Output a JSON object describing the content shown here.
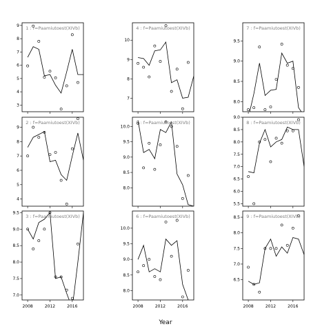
{
  "chart_data": {
    "type": "line",
    "xlabel": "Year",
    "x_ticks": [
      2008,
      2012,
      2016
    ],
    "x_range": [
      2007,
      2018
    ],
    "panels": [
      {
        "title": "1 : f=Paamiutoest(XIVb)",
        "ylim": [
          2.5,
          9.2
        ],
        "y_ticks": [
          3,
          4,
          5,
          6,
          7,
          8,
          9
        ],
        "y_tick_labels": [
          "3",
          "4",
          "5",
          "6",
          "7",
          "8",
          "9"
        ],
        "line": {
          "x": [
            2008,
            2009,
            2010,
            2011,
            2012,
            2013,
            2014,
            2015,
            2016,
            2017,
            2018
          ],
          "y": [
            6.6,
            7.4,
            7.2,
            5.2,
            5.3,
            4.5,
            3.9,
            5.5,
            7.2,
            5.3,
            5.3
          ]
        },
        "points": {
          "x": [
            2008,
            2009,
            2010,
            2011,
            2012,
            2013,
            2014,
            2015,
            2016,
            2017
          ],
          "y": [
            5.95,
            8.95,
            7.8,
            5.1,
            5.55,
            5.05,
            2.7,
            4.45,
            8.3,
            4.7
          ]
        }
      },
      {
        "title": "4 : f=Paamiutoest(XIVb)",
        "ylim": [
          6.3,
          10.9
        ],
        "y_ticks": [
          7,
          8,
          9,
          10
        ],
        "y_tick_labels": [
          "7",
          "8",
          "9",
          "10"
        ],
        "line": {
          "x": [
            2008,
            2009,
            2010,
            2011,
            2012,
            2013,
            2014,
            2015,
            2016,
            2017,
            2018
          ],
          "y": [
            9.1,
            9.05,
            8.7,
            9.45,
            9.5,
            9.9,
            7.8,
            7.95,
            7.0,
            7.05,
            8.15
          ]
        },
        "points": {
          "x": [
            2008,
            2009,
            2010,
            2011,
            2012,
            2013,
            2014,
            2015,
            2016,
            2017
          ],
          "y": [
            8.8,
            8.6,
            8.1,
            9.7,
            8.9,
            10.75,
            7.35,
            8.5,
            6.45,
            8.85
          ]
        }
      },
      {
        "title": "7 : f=Paamiutoest(XIVb)",
        "ylim": [
          7.75,
          9.95
        ],
        "y_ticks": [
          8.0,
          8.5,
          9.0,
          9.5
        ],
        "y_tick_labels": [
          "8.0",
          "8.5",
          "9.0",
          "9.5"
        ],
        "line": {
          "x": [
            2008,
            2009,
            2010,
            2011,
            2012,
            2013,
            2014,
            2015,
            2016,
            2017,
            2018
          ],
          "y": [
            7.6,
            8.2,
            8.95,
            8.15,
            8.28,
            8.3,
            9.2,
            8.95,
            9.0,
            7.85,
            7.65
          ]
        },
        "points": {
          "x": [
            2008,
            2009,
            2010,
            2011,
            2012,
            2013,
            2014,
            2015,
            2016,
            2017
          ],
          "y": [
            7.8,
            7.85,
            9.35,
            7.8,
            7.87,
            8.55,
            9.42,
            8.9,
            8.82,
            8.35
          ]
        }
      },
      {
        "title": "2 : f=Paamiutoest(XIVb)",
        "ylim": [
          3.5,
          9.7
        ],
        "y_ticks": [
          4,
          5,
          6,
          7,
          8,
          9
        ],
        "y_tick_labels": [
          "4",
          "5",
          "6",
          "7",
          "8",
          "9"
        ],
        "line": {
          "x": [
            2008,
            2009,
            2010,
            2011,
            2012,
            2013,
            2014,
            2015,
            2016,
            2017,
            2018
          ],
          "y": [
            7.6,
            8.3,
            8.5,
            8.7,
            6.6,
            6.7,
            5.7,
            5.3,
            7.0,
            8.6,
            6.7
          ]
        },
        "points": {
          "x": [
            2008,
            2009,
            2010,
            2011,
            2012,
            2013,
            2014,
            2015,
            2016,
            2017
          ],
          "y": [
            7.0,
            9.0,
            8.3,
            8.65,
            7.1,
            7.25,
            5.3,
            3.65,
            7.5,
            9.6
          ]
        }
      },
      {
        "title": "5 : f=Paamiutoest(XIVb)",
        "ylim": [
          7.4,
          10.3
        ],
        "y_ticks": [
          8.0,
          8.5,
          9.0,
          9.5,
          10.0
        ],
        "y_tick_labels": [
          "8.0",
          "8.5",
          "9.0",
          "9.5",
          "10.0"
        ],
        "line": {
          "x": [
            2008,
            2009,
            2010,
            2011,
            2012,
            2013,
            2014,
            2015,
            2016,
            2017,
            2018
          ],
          "y": [
            10.2,
            9.15,
            9.25,
            8.95,
            9.9,
            9.8,
            10.15,
            8.45,
            8.1,
            7.45,
            7.4
          ]
        },
        "points": {
          "x": [
            2008,
            2009,
            2010,
            2011,
            2012,
            2013,
            2014,
            2015,
            2016,
            2017
          ],
          "y": [
            10.1,
            8.65,
            9.45,
            8.6,
            9.4,
            10.15,
            10.0,
            9.35,
            7.65,
            8.4
          ]
        }
      },
      {
        "title": "8 : f=Paamiutoest(XIVb)",
        "ylim": [
          5.4,
          9.0
        ],
        "y_ticks": [
          5.5,
          6.0,
          6.5,
          7.0,
          7.5,
          8.0,
          8.5,
          9.0
        ],
        "y_tick_labels": [
          "5.5",
          "6.0",
          "6.5",
          "7.0",
          "7.5",
          "8.0",
          "8.5",
          "9.0"
        ],
        "line": {
          "x": [
            2008,
            2009,
            2010,
            2011,
            2012,
            2013,
            2014,
            2015,
            2016,
            2017,
            2018
          ],
          "y": [
            6.8,
            6.75,
            7.95,
            8.5,
            7.8,
            8.0,
            8.1,
            8.6,
            8.5,
            8.5,
            7.0
          ]
        },
        "points": {
          "x": [
            2008,
            2009,
            2010,
            2011,
            2012,
            2013,
            2014,
            2015,
            2016,
            2017
          ],
          "y": [
            6.6,
            5.5,
            8.0,
            8.1,
            7.2,
            8.15,
            7.95,
            8.45,
            8.45,
            8.9
          ]
        }
      },
      {
        "title": "3 : f=Paamiutoest(XIVb)",
        "ylim": [
          6.85,
          9.55
        ],
        "y_ticks": [
          7.0,
          7.5,
          8.0,
          8.5,
          9.0,
          9.5
        ],
        "y_tick_labels": [
          "7.0",
          "7.5",
          "8.0",
          "8.5",
          "9.0",
          "9.5"
        ],
        "line": {
          "x": [
            2008,
            2009,
            2010,
            2011,
            2012,
            2013,
            2014,
            2015,
            2016,
            2017,
            2018
          ],
          "y": [
            9.0,
            8.7,
            9.2,
            9.3,
            9.5,
            7.5,
            7.55,
            7.05,
            6.6,
            8.0,
            9.5
          ]
        },
        "points": {
          "x": [
            2008,
            2009,
            2010,
            2011,
            2012,
            2013,
            2014,
            2015,
            2016,
            2017
          ],
          "y": [
            9.0,
            8.4,
            8.65,
            9.0,
            9.5,
            7.55,
            7.55,
            7.15,
            6.9,
            8.55
          ]
        }
      },
      {
        "title": "6 : f=Paamiutoest(XIVb)",
        "ylim": [
          7.7,
          10.55
        ],
        "y_ticks": [
          8.0,
          8.5,
          9.0,
          9.5,
          10.0
        ],
        "y_tick_labels": [
          "8.0",
          "8.5",
          "9.0",
          "9.5",
          "10.0"
        ],
        "line": {
          "x": [
            2008,
            2009,
            2010,
            2011,
            2012,
            2013,
            2014,
            2015,
            2016,
            2017,
            2018
          ],
          "y": [
            9.0,
            9.45,
            8.6,
            8.7,
            8.6,
            9.65,
            9.45,
            9.6,
            8.2,
            7.7,
            7.6
          ]
        },
        "points": {
          "x": [
            2008,
            2009,
            2010,
            2011,
            2012,
            2013,
            2014,
            2015,
            2016,
            2017
          ],
          "y": [
            8.6,
            8.8,
            9.0,
            8.45,
            8.35,
            10.2,
            9.1,
            10.25,
            7.8,
            8.65
          ]
        }
      },
      {
        "title": "9 : f=Paamiutoest(XIVb)",
        "ylim": [
          5.85,
          8.7
        ],
        "y_ticks": [
          6.5,
          7.0,
          7.5,
          8.0,
          8.5
        ],
        "y_tick_labels": [
          "6.5",
          "7.0",
          "7.5",
          "8.0",
          "8.5"
        ],
        "line": {
          "x": [
            2008,
            2009,
            2010,
            2011,
            2012,
            2013,
            2014,
            2015,
            2016,
            2017,
            2018
          ],
          "y": [
            6.45,
            6.35,
            6.4,
            7.5,
            7.8,
            7.25,
            7.55,
            7.35,
            7.85,
            7.8,
            7.3
          ]
        },
        "points": {
          "x": [
            2008,
            2009,
            2010,
            2011,
            2012,
            2013,
            2014,
            2015,
            2016,
            2017
          ],
          "y": [
            6.9,
            6.35,
            6.1,
            7.5,
            7.5,
            7.5,
            8.25,
            7.6,
            8.15,
            8.55
          ]
        }
      }
    ]
  }
}
